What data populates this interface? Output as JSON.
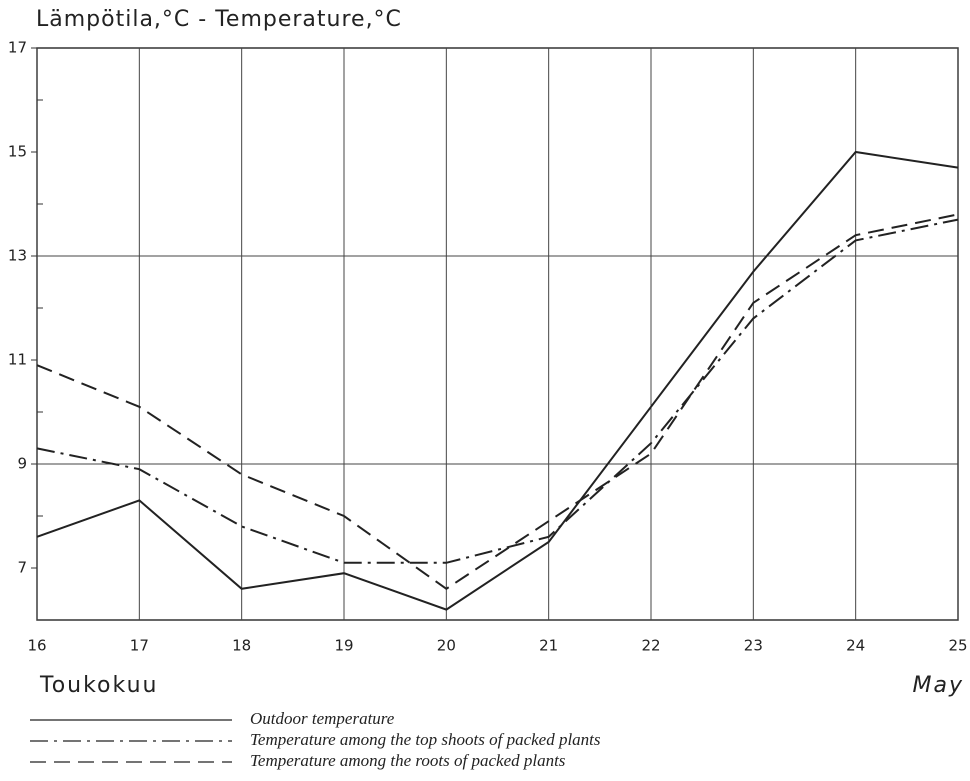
{
  "chart_data": {
    "type": "line",
    "title": "Lämpötila,°C - Temperature,°C",
    "annotations": [
      "Toukokuu",
      "May"
    ],
    "x": [
      16,
      17,
      18,
      19,
      20,
      21,
      22,
      23,
      24,
      25
    ],
    "xlim": [
      16,
      25
    ],
    "xticks": [
      16,
      17,
      18,
      19,
      20,
      21,
      22,
      23,
      24,
      25
    ],
    "ylim": [
      6,
      17
    ],
    "yticks": [
      7,
      9,
      11,
      13,
      15,
      17
    ],
    "ygrid": [
      9,
      13
    ],
    "yminor": [
      8,
      10,
      12,
      14,
      16
    ],
    "xgrid": true,
    "series": [
      {
        "name": "Outdoor temperature",
        "color": "#222222",
        "dash": "solid",
        "values": [
          7.6,
          8.3,
          6.6,
          6.9,
          6.2,
          7.5,
          10.1,
          12.7,
          15.0,
          14.7
        ]
      },
      {
        "name": "Temperature among the top shoots of packed plants",
        "color": "#222222",
        "dash": "dashdot",
        "values": [
          9.3,
          8.9,
          7.8,
          7.1,
          7.1,
          7.6,
          9.4,
          11.8,
          13.3,
          13.7
        ]
      },
      {
        "name": "Temperature among the roots of packed plants",
        "color": "#222222",
        "dash": "dashed",
        "values": [
          10.9,
          10.1,
          8.8,
          8.0,
          6.6,
          7.9,
          9.2,
          12.1,
          13.4,
          13.8
        ]
      }
    ]
  }
}
